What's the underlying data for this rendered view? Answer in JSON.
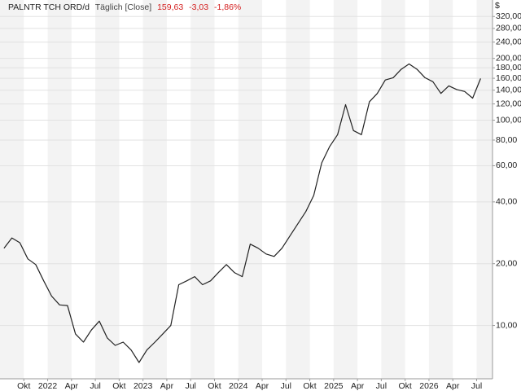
{
  "chart_data": {
    "type": "line",
    "title": "PALNTR TCH ORD/d",
    "subtitle": "Täglich [Close]",
    "annotations": [
      "159,63",
      "-3,03",
      "-1,86%"
    ],
    "annotation_color": "#d42020",
    "y_label": "$",
    "log_scale": true,
    "grid": true,
    "x": [
      "2021-07",
      "2021-08",
      "2021-09",
      "2021-10",
      "2021-11",
      "2021-12",
      "2022-01",
      "2022-02",
      "2022-03",
      "2022-04",
      "2022-05",
      "2022-06",
      "2022-07",
      "2022-08",
      "2022-09",
      "2022-10",
      "2022-11",
      "2022-12",
      "2023-01",
      "2023-02",
      "2023-03",
      "2023-04",
      "2023-05",
      "2023-06",
      "2023-07",
      "2023-08",
      "2023-09",
      "2023-10",
      "2023-11",
      "2023-12",
      "2024-01",
      "2024-02",
      "2024-03",
      "2024-04",
      "2024-05",
      "2024-06",
      "2024-07",
      "2024-08",
      "2024-09",
      "2024-10",
      "2024-11",
      "2024-12",
      "2025-01",
      "2025-02",
      "2025-03",
      "2025-04",
      "2025-05",
      "2025-06",
      "2025-07",
      "2025-08",
      "2025-09",
      "2025-10",
      "2025-11",
      "2025-12",
      "2026-01",
      "2026-02",
      "2026-03",
      "2026-04",
      "2026-05",
      "2026-06",
      "2026-07"
    ],
    "series": [
      {
        "name": "PALNTR TCH ORD",
        "color": "#222222",
        "values": [
          23.8,
          26.7,
          25.3,
          21.1,
          19.8,
          16.5,
          13.9,
          12.6,
          12.5,
          9.1,
          8.3,
          9.5,
          10.5,
          8.7,
          8.0,
          8.3,
          7.6,
          6.6,
          7.6,
          8.3,
          9.1,
          10.0,
          15.8,
          16.5,
          17.3,
          15.8,
          16.5,
          18.1,
          19.8,
          18.1,
          17.3,
          24.9,
          23.8,
          22.3,
          21.7,
          23.8,
          27.3,
          31.3,
          35.9,
          43.0,
          61.9,
          74.5,
          85,
          119,
          89,
          85,
          123,
          135,
          157,
          161,
          177,
          188,
          177,
          161,
          154,
          135,
          147,
          141,
          138,
          128,
          159.63
        ]
      }
    ],
    "xlim": [
      "2021-07",
      "2026-09"
    ],
    "xticks": [
      {
        "value": "2021-10",
        "label": "Okt"
      },
      {
        "value": "2022-01",
        "label": "2022"
      },
      {
        "value": "2022-04",
        "label": "Apr"
      },
      {
        "value": "2022-07",
        "label": "Jul"
      },
      {
        "value": "2022-10",
        "label": "Okt"
      },
      {
        "value": "2023-01",
        "label": "2023"
      },
      {
        "value": "2023-04",
        "label": "Apr"
      },
      {
        "value": "2023-07",
        "label": "Jul"
      },
      {
        "value": "2023-10",
        "label": "Okt"
      },
      {
        "value": "2024-01",
        "label": "2024"
      },
      {
        "value": "2024-04",
        "label": "Apr"
      },
      {
        "value": "2024-07",
        "label": "Jul"
      },
      {
        "value": "2024-10",
        "label": "Okt"
      },
      {
        "value": "2025-01",
        "label": "2025"
      },
      {
        "value": "2025-04",
        "label": "Apr"
      },
      {
        "value": "2025-07",
        "label": "Jul"
      },
      {
        "value": "2025-10",
        "label": "Okt"
      },
      {
        "value": "2026-01",
        "label": "2026"
      },
      {
        "value": "2026-04",
        "label": "Apr"
      },
      {
        "value": "2026-07",
        "label": "Jul"
      }
    ],
    "ylim": [
      5.5,
      385
    ],
    "yticks": [
      {
        "value": 10,
        "label": "10,00"
      },
      {
        "value": 20,
        "label": "20,00"
      },
      {
        "value": 40,
        "label": "40,00"
      },
      {
        "value": 60,
        "label": "60,00"
      },
      {
        "value": 80,
        "label": "80,00"
      },
      {
        "value": 100,
        "label": "100,00"
      },
      {
        "value": 120,
        "label": "120,00"
      },
      {
        "value": 140,
        "label": "140,00"
      },
      {
        "value": 160,
        "label": "160,00"
      },
      {
        "value": 180,
        "label": "180,00"
      },
      {
        "value": 200,
        "label": "200,00"
      },
      {
        "value": 240,
        "label": "240,00"
      },
      {
        "value": 280,
        "label": "280,00"
      },
      {
        "value": 320,
        "label": "320,00"
      }
    ]
  }
}
